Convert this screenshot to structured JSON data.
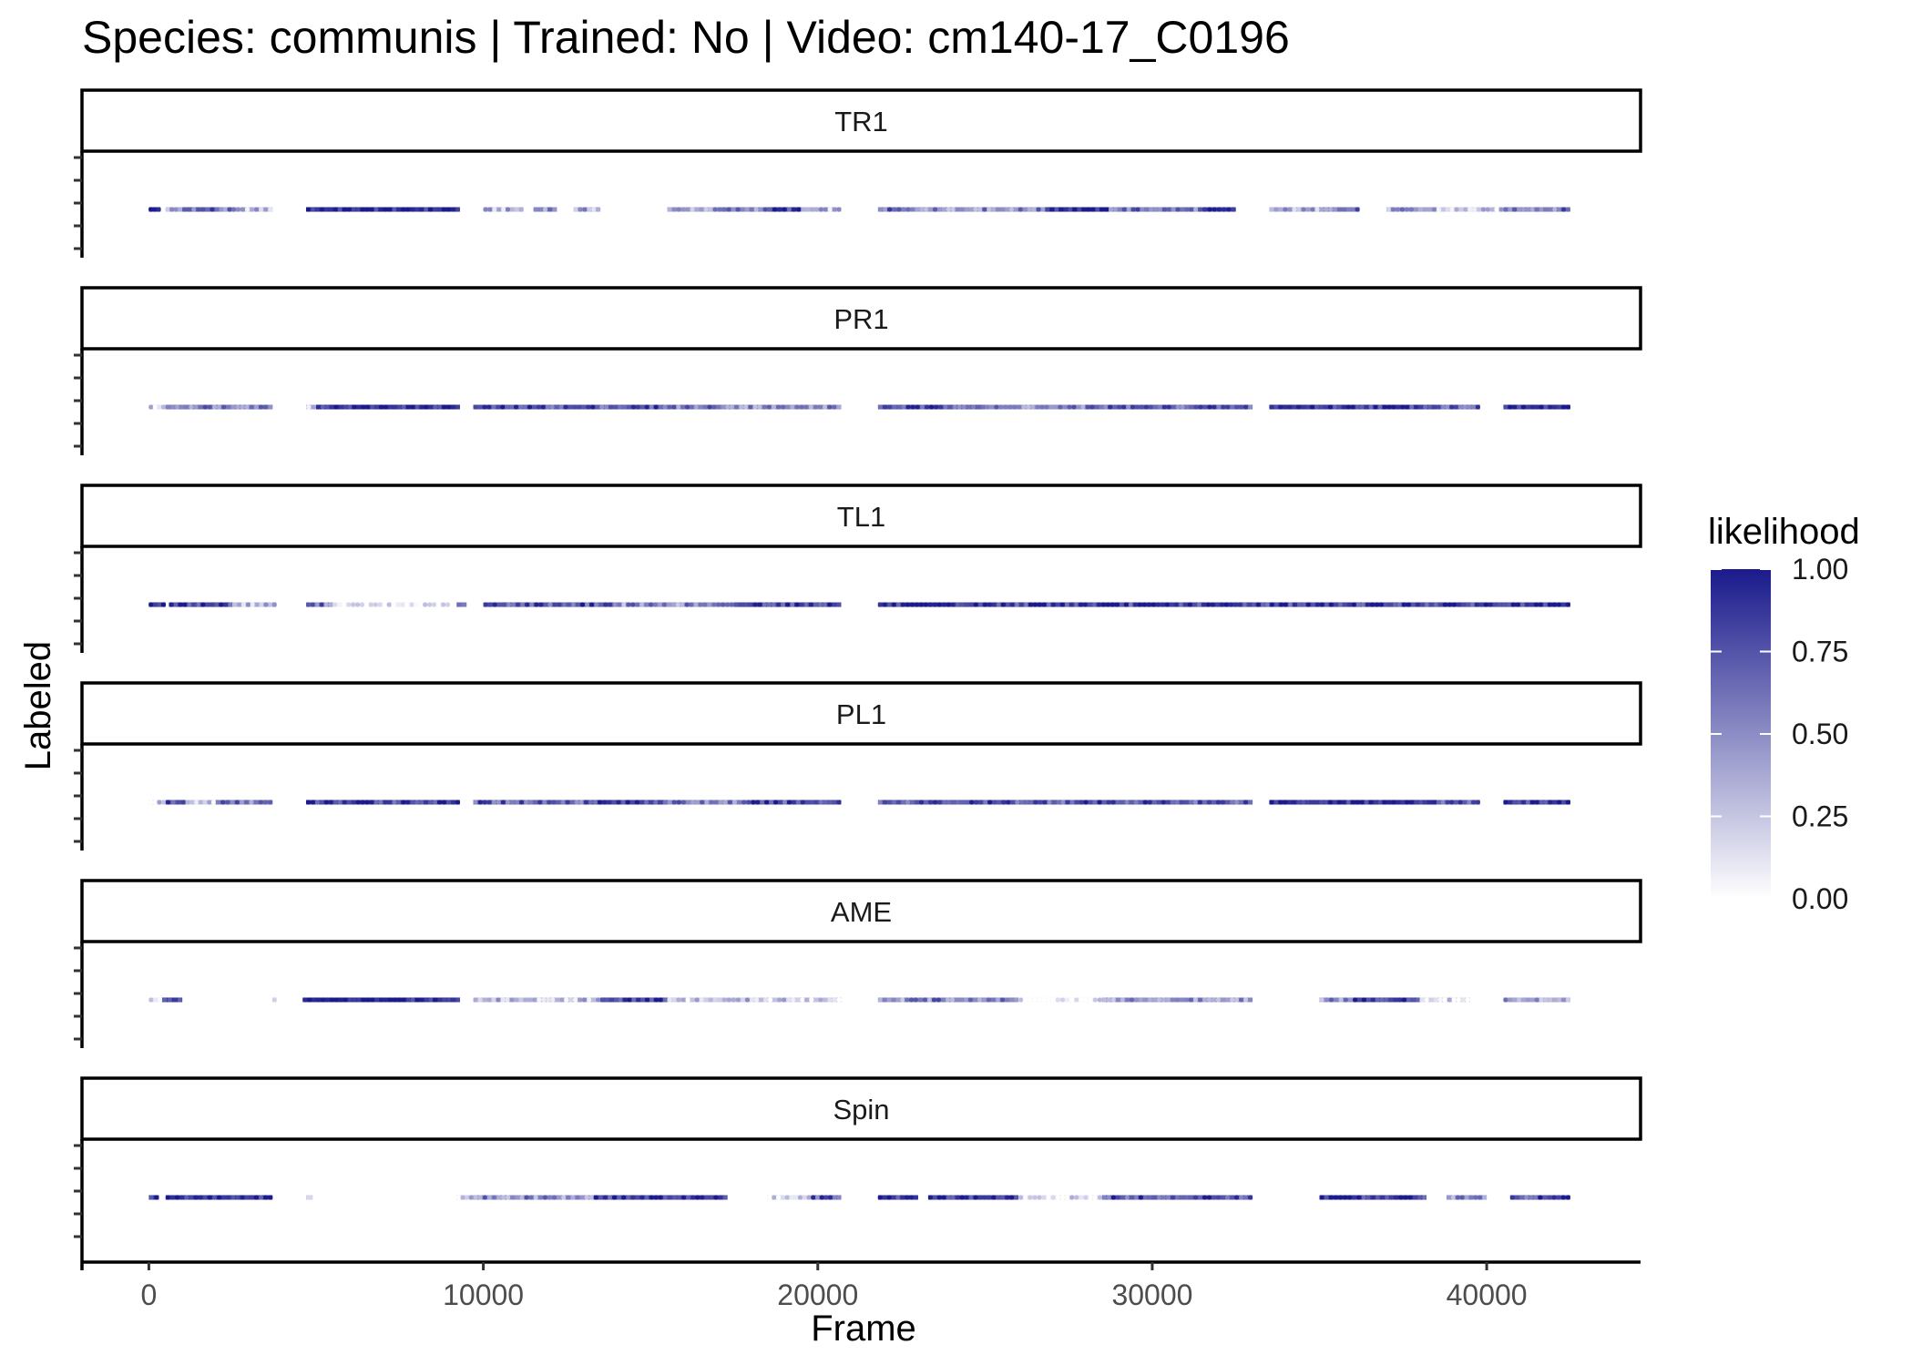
{
  "chart_data": {
    "type": "scatter",
    "title": "Species: communis | Trained: No | Video: cm140-17_C0196",
    "xlabel": "Frame",
    "ylabel": "Labeled",
    "xlim": [
      -2000,
      44600
    ],
    "x_ticks": [
      0,
      10000,
      20000,
      30000,
      40000
    ],
    "x_tick_labels": [
      "0",
      "10000",
      "20000",
      "30000",
      "40000"
    ],
    "facets": [
      "TR1",
      "PR1",
      "TL1",
      "PL1",
      "AME",
      "Spin"
    ],
    "legend": {
      "title": "likelihood",
      "position": "right",
      "ticks": [
        0,
        0.25,
        0.5,
        0.75,
        1
      ],
      "tick_labels": [
        "0.00",
        "0.25",
        "0.50",
        "0.75",
        "1.00"
      ],
      "color_low": "#ffffff",
      "color_high": "#1a1a8c"
    },
    "series": [
      {
        "name": "TR1",
        "segments": [
          {
            "from": 0,
            "to": 350,
            "likelihood": 0.95
          },
          {
            "from": 500,
            "to": 1000,
            "likelihood": 0.35
          },
          {
            "from": 1000,
            "to": 2100,
            "likelihood": 0.7
          },
          {
            "from": 2100,
            "to": 2600,
            "likelihood": 0.5
          },
          {
            "from": 2600,
            "to": 3700,
            "likelihood": 0.3
          },
          {
            "from": 4700,
            "to": 9300,
            "likelihood": 0.95
          },
          {
            "from": 10000,
            "to": 11200,
            "likelihood": 0.3
          },
          {
            "from": 11500,
            "to": 12200,
            "likelihood": 0.55
          },
          {
            "from": 12700,
            "to": 13500,
            "likelihood": 0.35
          },
          {
            "from": 15500,
            "to": 17000,
            "likelihood": 0.4
          },
          {
            "from": 17000,
            "to": 18500,
            "likelihood": 0.55
          },
          {
            "from": 18500,
            "to": 19500,
            "likelihood": 0.85
          },
          {
            "from": 19500,
            "to": 20700,
            "likelihood": 0.3
          },
          {
            "from": 21800,
            "to": 22500,
            "likelihood": 0.6
          },
          {
            "from": 22500,
            "to": 26800,
            "likelihood": 0.5
          },
          {
            "from": 26800,
            "to": 28700,
            "likelihood": 0.97
          },
          {
            "from": 28700,
            "to": 31500,
            "likelihood": 0.6
          },
          {
            "from": 31500,
            "to": 32500,
            "likelihood": 0.8
          },
          {
            "from": 33500,
            "to": 35000,
            "likelihood": 0.35
          },
          {
            "from": 35000,
            "to": 36200,
            "likelihood": 0.6
          },
          {
            "from": 37000,
            "to": 38500,
            "likelihood": 0.4
          },
          {
            "from": 38500,
            "to": 40500,
            "likelihood": 0.2
          },
          {
            "from": 40500,
            "to": 42500,
            "likelihood": 0.6
          }
        ]
      },
      {
        "name": "PR1",
        "segments": [
          {
            "from": 0,
            "to": 500,
            "likelihood": 0.15
          },
          {
            "from": 500,
            "to": 3700,
            "likelihood": 0.6
          },
          {
            "from": 4700,
            "to": 5000,
            "likelihood": 0.3
          },
          {
            "from": 5000,
            "to": 9300,
            "likelihood": 0.95
          },
          {
            "from": 9700,
            "to": 15500,
            "likelihood": 0.75
          },
          {
            "from": 15500,
            "to": 17500,
            "likelihood": 0.6
          },
          {
            "from": 17500,
            "to": 20700,
            "likelihood": 0.5
          },
          {
            "from": 21800,
            "to": 25000,
            "likelihood": 0.75
          },
          {
            "from": 25000,
            "to": 28000,
            "likelihood": 0.5
          },
          {
            "from": 28000,
            "to": 33000,
            "likelihood": 0.7
          },
          {
            "from": 33500,
            "to": 38500,
            "likelihood": 0.9
          },
          {
            "from": 38500,
            "to": 39800,
            "likelihood": 0.7
          },
          {
            "from": 40500,
            "to": 42500,
            "likelihood": 0.9
          }
        ]
      },
      {
        "name": "TL1",
        "segments": [
          {
            "from": 0,
            "to": 500,
            "likelihood": 0.95
          },
          {
            "from": 600,
            "to": 2500,
            "likelihood": 0.85
          },
          {
            "from": 2500,
            "to": 3700,
            "likelihood": 0.3
          },
          {
            "from": 3700,
            "to": 3800,
            "likelihood": 0.6
          },
          {
            "from": 4700,
            "to": 5500,
            "likelihood": 0.6
          },
          {
            "from": 5500,
            "to": 9000,
            "likelihood": 0.05
          },
          {
            "from": 9200,
            "to": 9500,
            "likelihood": 0.6
          },
          {
            "from": 10000,
            "to": 14000,
            "likelihood": 0.75
          },
          {
            "from": 14000,
            "to": 17500,
            "likelihood": 0.5
          },
          {
            "from": 17500,
            "to": 20700,
            "likelihood": 0.85
          },
          {
            "from": 21800,
            "to": 42500,
            "likelihood": 0.85
          }
        ]
      },
      {
        "name": "PL1",
        "segments": [
          {
            "from": 0,
            "to": 500,
            "likelihood": 0.15
          },
          {
            "from": 500,
            "to": 1100,
            "likelihood": 0.75
          },
          {
            "from": 1100,
            "to": 2000,
            "likelihood": 0.25
          },
          {
            "from": 2000,
            "to": 3700,
            "likelihood": 0.6
          },
          {
            "from": 4700,
            "to": 9300,
            "likelihood": 0.85
          },
          {
            "from": 9700,
            "to": 13000,
            "likelihood": 0.7
          },
          {
            "from": 13000,
            "to": 15500,
            "likelihood": 0.85
          },
          {
            "from": 15500,
            "to": 18000,
            "likelihood": 0.55
          },
          {
            "from": 18000,
            "to": 20700,
            "likelihood": 0.8
          },
          {
            "from": 21800,
            "to": 33000,
            "likelihood": 0.75
          },
          {
            "from": 33500,
            "to": 38500,
            "likelihood": 0.95
          },
          {
            "from": 38500,
            "to": 39800,
            "likelihood": 0.7
          },
          {
            "from": 40500,
            "to": 42500,
            "likelihood": 0.9
          }
        ]
      },
      {
        "name": "AME",
        "segments": [
          {
            "from": 0,
            "to": 400,
            "likelihood": 0.1
          },
          {
            "from": 400,
            "to": 1000,
            "likelihood": 0.9
          },
          {
            "from": 3700,
            "to": 3800,
            "likelihood": 0.3
          },
          {
            "from": 4600,
            "to": 9300,
            "likelihood": 0.97
          },
          {
            "from": 9700,
            "to": 13500,
            "likelihood": 0.3
          },
          {
            "from": 13500,
            "to": 15500,
            "likelihood": 0.85
          },
          {
            "from": 15500,
            "to": 20700,
            "likelihood": 0.25
          },
          {
            "from": 21800,
            "to": 23000,
            "likelihood": 0.5
          },
          {
            "from": 23000,
            "to": 26000,
            "likelihood": 0.55
          },
          {
            "from": 26000,
            "to": 28500,
            "likelihood": 0.05
          },
          {
            "from": 28500,
            "to": 33000,
            "likelihood": 0.5
          },
          {
            "from": 35000,
            "to": 36000,
            "likelihood": 0.5
          },
          {
            "from": 36000,
            "to": 38000,
            "likelihood": 0.85
          },
          {
            "from": 38000,
            "to": 39500,
            "likelihood": 0.2
          },
          {
            "from": 40500,
            "to": 42500,
            "likelihood": 0.4
          }
        ]
      },
      {
        "name": "Spin",
        "segments": [
          {
            "from": 0,
            "to": 300,
            "likelihood": 0.9
          },
          {
            "from": 500,
            "to": 3700,
            "likelihood": 0.9
          },
          {
            "from": 4700,
            "to": 4900,
            "likelihood": 0.2
          },
          {
            "from": 9200,
            "to": 9700,
            "likelihood": 0.2
          },
          {
            "from": 9700,
            "to": 13300,
            "likelihood": 0.5
          },
          {
            "from": 13300,
            "to": 17300,
            "likelihood": 0.85
          },
          {
            "from": 18500,
            "to": 19800,
            "likelihood": 0.15
          },
          {
            "from": 19800,
            "to": 20700,
            "likelihood": 0.7
          },
          {
            "from": 21800,
            "to": 23000,
            "likelihood": 0.9
          },
          {
            "from": 23300,
            "to": 26000,
            "likelihood": 0.85
          },
          {
            "from": 26000,
            "to": 28500,
            "likelihood": 0.1
          },
          {
            "from": 28500,
            "to": 33000,
            "likelihood": 0.75
          },
          {
            "from": 35000,
            "to": 38200,
            "likelihood": 0.9
          },
          {
            "from": 38800,
            "to": 40000,
            "likelihood": 0.5
          },
          {
            "from": 40700,
            "to": 42500,
            "likelihood": 0.75
          }
        ]
      }
    ]
  }
}
